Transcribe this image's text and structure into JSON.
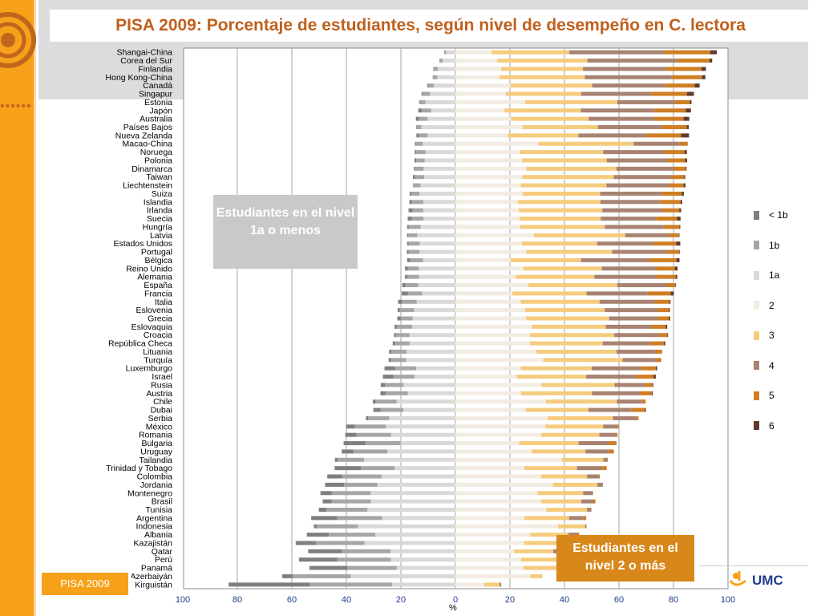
{
  "title": "PISA 2009: Porcentaje de estudiantes, según nivel de desempeño en C. lectora",
  "badge": "PISA 2009",
  "logo_text": "UMC",
  "callouts": {
    "low": "Estudiantes en el nivel 1a o menos",
    "high": "Estudiantes en el nivel 2 o más"
  },
  "axis_unit": "%",
  "colors": {
    "accent_orange": "#f7a11a",
    "title_brown": "#c0601d"
  },
  "legend": [
    {
      "label": "< 1b",
      "color": "#7f7f7f"
    },
    {
      "label": "1b",
      "color": "#a6a6a6"
    },
    {
      "label": "1a",
      "color": "#d9d9d9"
    },
    {
      "label": "2",
      "color": "#f3ece2"
    },
    {
      "label": "3",
      "color": "#f5cb7e"
    },
    {
      "label": "4",
      "color": "#a88371"
    },
    {
      "label": "5",
      "color": "#cf7e23"
    },
    {
      "label": "6",
      "color": "#5e3b2c"
    }
  ],
  "chart_data": {
    "type": "bar",
    "orientation": "horizontal-diverging",
    "title": "PISA 2009: Porcentaje de estudiantes, según nivel de desempeño en C. lectora",
    "xlabel": "%",
    "xlim": [
      -100,
      100
    ],
    "x_tick_labels": [
      "100",
      "80",
      "60",
      "40",
      "20",
      "0",
      "20",
      "40",
      "60",
      "80",
      "100"
    ],
    "series_names": [
      "< 1b",
      "1b",
      "1a",
      "2",
      "3",
      "4",
      "5",
      "6"
    ],
    "categories": [
      "Shangai-China",
      "Corea del Sur",
      "Finlandia",
      "Hong Kong-China",
      "Canadá",
      "Singapur",
      "Estonia",
      "Japón",
      "Australia",
      "Países Bajos",
      "Nueva Zelanda",
      "Macao-China",
      "Noruega",
      "Polonia",
      "Dinamarca",
      "Taiwan",
      "Liechtenstein",
      "Suiza",
      "Islandia",
      "Irlanda",
      "Suecia",
      "Hungría",
      "Latvia",
      "Estados Unidos",
      "Portugal",
      "Bélgica",
      "Reino Unido",
      "Alemania",
      "España",
      "Francia",
      "Italia",
      "Eslovenia",
      "Grecia",
      "Eslovaquia",
      "Croacia",
      "República Checa",
      "Lituania",
      "Turquía",
      "Luxemburgo",
      "Israel",
      "Rusia",
      "Austria",
      "Chile",
      "Dubai",
      "Serbia",
      "México",
      "Romania",
      "Bulgaria",
      "Uruguay",
      "Tailandia",
      "Trinidad y Tobago",
      "Colombia",
      "Jordania",
      "Montenegro",
      "Brasil",
      "Tunisia",
      "Argentina",
      "Indonesia",
      "Albania",
      "Kazajistán",
      "Qatar",
      "Perú",
      "Panamá",
      "Azerbaiyán",
      "Kirguistán"
    ],
    "values": [
      [
        0.1,
        0.6,
        3.4,
        13.3,
        28.5,
        34.7,
        17.0,
        2.4
      ],
      [
        0.2,
        0.9,
        4.7,
        15.4,
        33.0,
        32.9,
        11.9,
        1.0
      ],
      [
        0.2,
        1.5,
        6.4,
        16.7,
        30.1,
        30.6,
        12.9,
        1.6
      ],
      [
        0.2,
        1.5,
        6.6,
        16.1,
        31.4,
        31.8,
        11.2,
        1.2
      ],
      [
        0.4,
        2.0,
        7.9,
        20.2,
        30.0,
        26.8,
        10.8,
        1.8
      ],
      [
        0.4,
        2.7,
        9.3,
        18.5,
        27.6,
        25.7,
        13.1,
        2.6
      ],
      [
        0.2,
        2.1,
        11.0,
        25.6,
        33.8,
        21.2,
        5.4,
        0.6
      ],
      [
        1.3,
        3.4,
        8.9,
        18.0,
        28.0,
        27.0,
        11.5,
        1.9
      ],
      [
        1.0,
        3.3,
        10.2,
        20.4,
        28.5,
        24.1,
        10.7,
        2.1
      ],
      [
        0.1,
        1.8,
        12.5,
        24.7,
        27.6,
        23.5,
        9.1,
        0.7
      ],
      [
        0.9,
        3.2,
        10.2,
        19.3,
        25.8,
        24.8,
        12.9,
        2.9
      ],
      [
        0.3,
        2.6,
        12.0,
        30.6,
        34.8,
        16.9,
        2.8,
        0.1
      ],
      [
        0.5,
        3.4,
        11.0,
        23.6,
        30.6,
        22.3,
        7.6,
        0.8
      ],
      [
        0.6,
        3.1,
        11.3,
        24.5,
        31.0,
        22.3,
        6.5,
        0.7
      ],
      [
        0.4,
        3.1,
        11.7,
        26.0,
        33.1,
        21.0,
        4.4,
        0.3
      ],
      [
        0.7,
        3.5,
        11.4,
        24.6,
        33.5,
        21.0,
        4.8,
        0.4
      ],
      [
        0.0,
        2.8,
        12.8,
        24.0,
        31.4,
        23.0,
        5.3,
        0.7
      ],
      [
        0.5,
        3.1,
        13.2,
        24.6,
        28.5,
        22.7,
        7.2,
        0.8
      ],
      [
        0.9,
        4.2,
        11.8,
        22.9,
        30.3,
        22.0,
        7.4,
        0.6
      ],
      [
        1.5,
        3.9,
        11.8,
        23.3,
        30.6,
        21.9,
        6.3,
        0.7
      ],
      [
        1.5,
        4.3,
        11.7,
        23.5,
        29.8,
        20.3,
        7.7,
        1.3
      ],
      [
        0.6,
        4.3,
        12.8,
        23.8,
        31.0,
        21.6,
        5.8,
        0.3
      ],
      [
        0.4,
        3.3,
        14.0,
        28.8,
        33.5,
        16.2,
        3.5,
        0.2
      ],
      [
        0.6,
        4.0,
        13.1,
        24.4,
        27.6,
        20.6,
        8.4,
        1.5
      ],
      [
        0.6,
        4.0,
        13.2,
        26.0,
        31.5,
        20.1,
        4.5,
        0.2
      ],
      [
        1.1,
        4.7,
        11.9,
        20.3,
        25.8,
        24.9,
        10.1,
        1.1
      ],
      [
        1.0,
        4.1,
        13.4,
        24.9,
        28.8,
        19.8,
        7.0,
        1.0
      ],
      [
        0.8,
        4.4,
        13.3,
        22.2,
        28.8,
        22.8,
        7.0,
        0.6
      ],
      [
        1.2,
        4.7,
        13.6,
        26.8,
        32.6,
        18.1,
        3.2,
        0.2
      ],
      [
        2.3,
        5.2,
        12.2,
        20.9,
        27.2,
        22.4,
        8.5,
        1.1
      ],
      [
        1.4,
        5.4,
        14.2,
        24.0,
        28.9,
        20.2,
        5.4,
        0.4
      ],
      [
        0.8,
        5.2,
        15.2,
        25.6,
        29.2,
        19.3,
        4.3,
        0.3
      ],
      [
        1.2,
        4.4,
        15.7,
        25.9,
        30.5,
        17.8,
        4.1,
        0.5
      ],
      [
        0.8,
        5.6,
        15.9,
        28.1,
        27.1,
        16.7,
        5.3,
        0.5
      ],
      [
        0.6,
        5.0,
        16.9,
        27.4,
        30.9,
        16.3,
        3.1,
        0.3
      ],
      [
        0.8,
        5.4,
        16.8,
        27.4,
        26.6,
        17.4,
        5.1,
        0.5
      ],
      [
        0.8,
        5.6,
        17.9,
        29.7,
        29.4,
        14.4,
        2.2,
        0.1
      ],
      [
        0.8,
        5.6,
        18.1,
        32.2,
        29.1,
        12.4,
        1.8,
        0.0
      ],
      [
        3.8,
        7.8,
        14.4,
        24.0,
        26.0,
        18.2,
        5.3,
        0.5
      ],
      [
        3.9,
        7.7,
        15.0,
        22.5,
        25.5,
        18.1,
        6.6,
        0.8
      ],
      [
        1.6,
        6.8,
        19.0,
        31.6,
        26.8,
        11.1,
        2.8,
        0.3
      ],
      [
        1.9,
        8.1,
        17.5,
        24.1,
        26.0,
        17.4,
        4.5,
        0.4
      ],
      [
        1.0,
        7.7,
        21.6,
        33.2,
        26.0,
        9.3,
        1.3,
        0.0
      ],
      [
        2.7,
        8.3,
        19.1,
        25.8,
        23.0,
        15.7,
        5.1,
        0.3
      ],
      [
        0.8,
        7.7,
        24.3,
        33.8,
        24.0,
        8.6,
        0.8,
        0.0
      ],
      [
        3.2,
        11.4,
        25.5,
        33.0,
        21.2,
        5.3,
        0.4,
        0.0
      ],
      [
        4.1,
        12.7,
        23.6,
        31.6,
        21.2,
        6.2,
        0.5,
        0.0
      ],
      [
        8.0,
        12.9,
        20.1,
        23.4,
        21.8,
        11.0,
        2.6,
        0.2
      ],
      [
        4.2,
        12.5,
        25.0,
        28.0,
        19.7,
        8.5,
        1.8,
        0.1
      ],
      [
        1.0,
        9.7,
        33.5,
        39.0,
        15.3,
        1.6,
        0.0,
        0.0
      ],
      [
        9.6,
        12.4,
        22.3,
        25.3,
        19.3,
        9.3,
        1.6,
        0.0
      ],
      [
        5.4,
        14.5,
        27.1,
        31.4,
        16.9,
        4.3,
        0.4,
        0.0
      ],
      [
        7.0,
        12.2,
        28.6,
        35.8,
        16.3,
        2.0,
        0.0,
        0.0
      ],
      [
        4.1,
        14.3,
        31.1,
        30.1,
        16.8,
        3.4,
        0.2,
        0.0
      ],
      [
        3.3,
        14.4,
        31.0,
        31.6,
        14.6,
        4.1,
        0.9,
        0.1
      ],
      [
        2.8,
        15.0,
        32.3,
        33.3,
        15.0,
        1.5,
        0.1,
        0.0
      ],
      [
        9.6,
        16.4,
        26.9,
        25.3,
        16.4,
        5.3,
        1.0,
        0.0
      ],
      [
        1.1,
        15.0,
        35.8,
        37.6,
        10.0,
        0.5,
        0.0,
        0.0
      ],
      [
        8.1,
        17.0,
        29.4,
        27.4,
        14.1,
        3.2,
        0.7,
        0.0
      ],
      [
        7.4,
        17.9,
        33.3,
        25.3,
        11.7,
        3.0,
        1.4,
        0.0
      ],
      [
        12.4,
        17.8,
        23.8,
        21.6,
        14.3,
        7.6,
        2.1,
        0.0
      ],
      [
        14.1,
        19.6,
        23.7,
        24.1,
        13.6,
        4.1,
        0.5,
        0.0
      ],
      [
        13.8,
        18.2,
        21.5,
        25.0,
        13.9,
        5.6,
        0.7,
        0.0
      ],
      [
        3.9,
        21.2,
        38.4,
        27.5,
        4.4,
        0.0,
        0.0,
        0.0
      ],
      [
        29.8,
        30.1,
        23.3,
        10.6,
        5.6,
        0.6,
        0.0,
        0.0
      ]
    ]
  }
}
